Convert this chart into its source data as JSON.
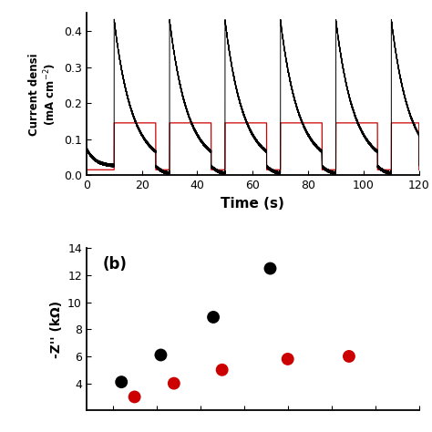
{
  "panel_a": {
    "xlabel": "Time (s)",
    "ylabel": "Current densi",
    "xlim": [
      0,
      120
    ],
    "ylim": [
      0.0,
      0.45
    ],
    "yticks": [
      0.0,
      0.1,
      0.2,
      0.3,
      0.4
    ],
    "xticks": [
      0,
      20,
      40,
      60,
      80,
      100,
      120
    ],
    "light_on_times": [
      10,
      30,
      50,
      70,
      90,
      110
    ],
    "light_off_times": [
      25,
      45,
      65,
      85,
      105,
      120
    ],
    "black_peak": 0.43,
    "black_baseline": 0.025,
    "initial_value": 0.075,
    "red_on": 0.145,
    "red_off": 0.015,
    "decay_tau": 6.5,
    "dark_tau": 3.0
  },
  "panel_b": {
    "title": "(b)",
    "ylabel": "-Z'' (kΩ)",
    "ylim": [
      2.0,
      14.0
    ],
    "yticks": [
      4,
      6,
      8,
      10,
      12,
      14
    ],
    "black_x": [
      6.0,
      10.5,
      16.5,
      23.0
    ],
    "black_y": [
      4.1,
      6.1,
      8.9,
      12.5
    ],
    "red_x": [
      7.5,
      12.0,
      17.5,
      25.0,
      32.0
    ],
    "red_y": [
      3.0,
      4.0,
      5.0,
      5.8,
      6.0
    ],
    "xlim": [
      2,
      40
    ]
  },
  "bg_color": "#ffffff",
  "black_color": "#000000",
  "red_color": "#cc0000"
}
